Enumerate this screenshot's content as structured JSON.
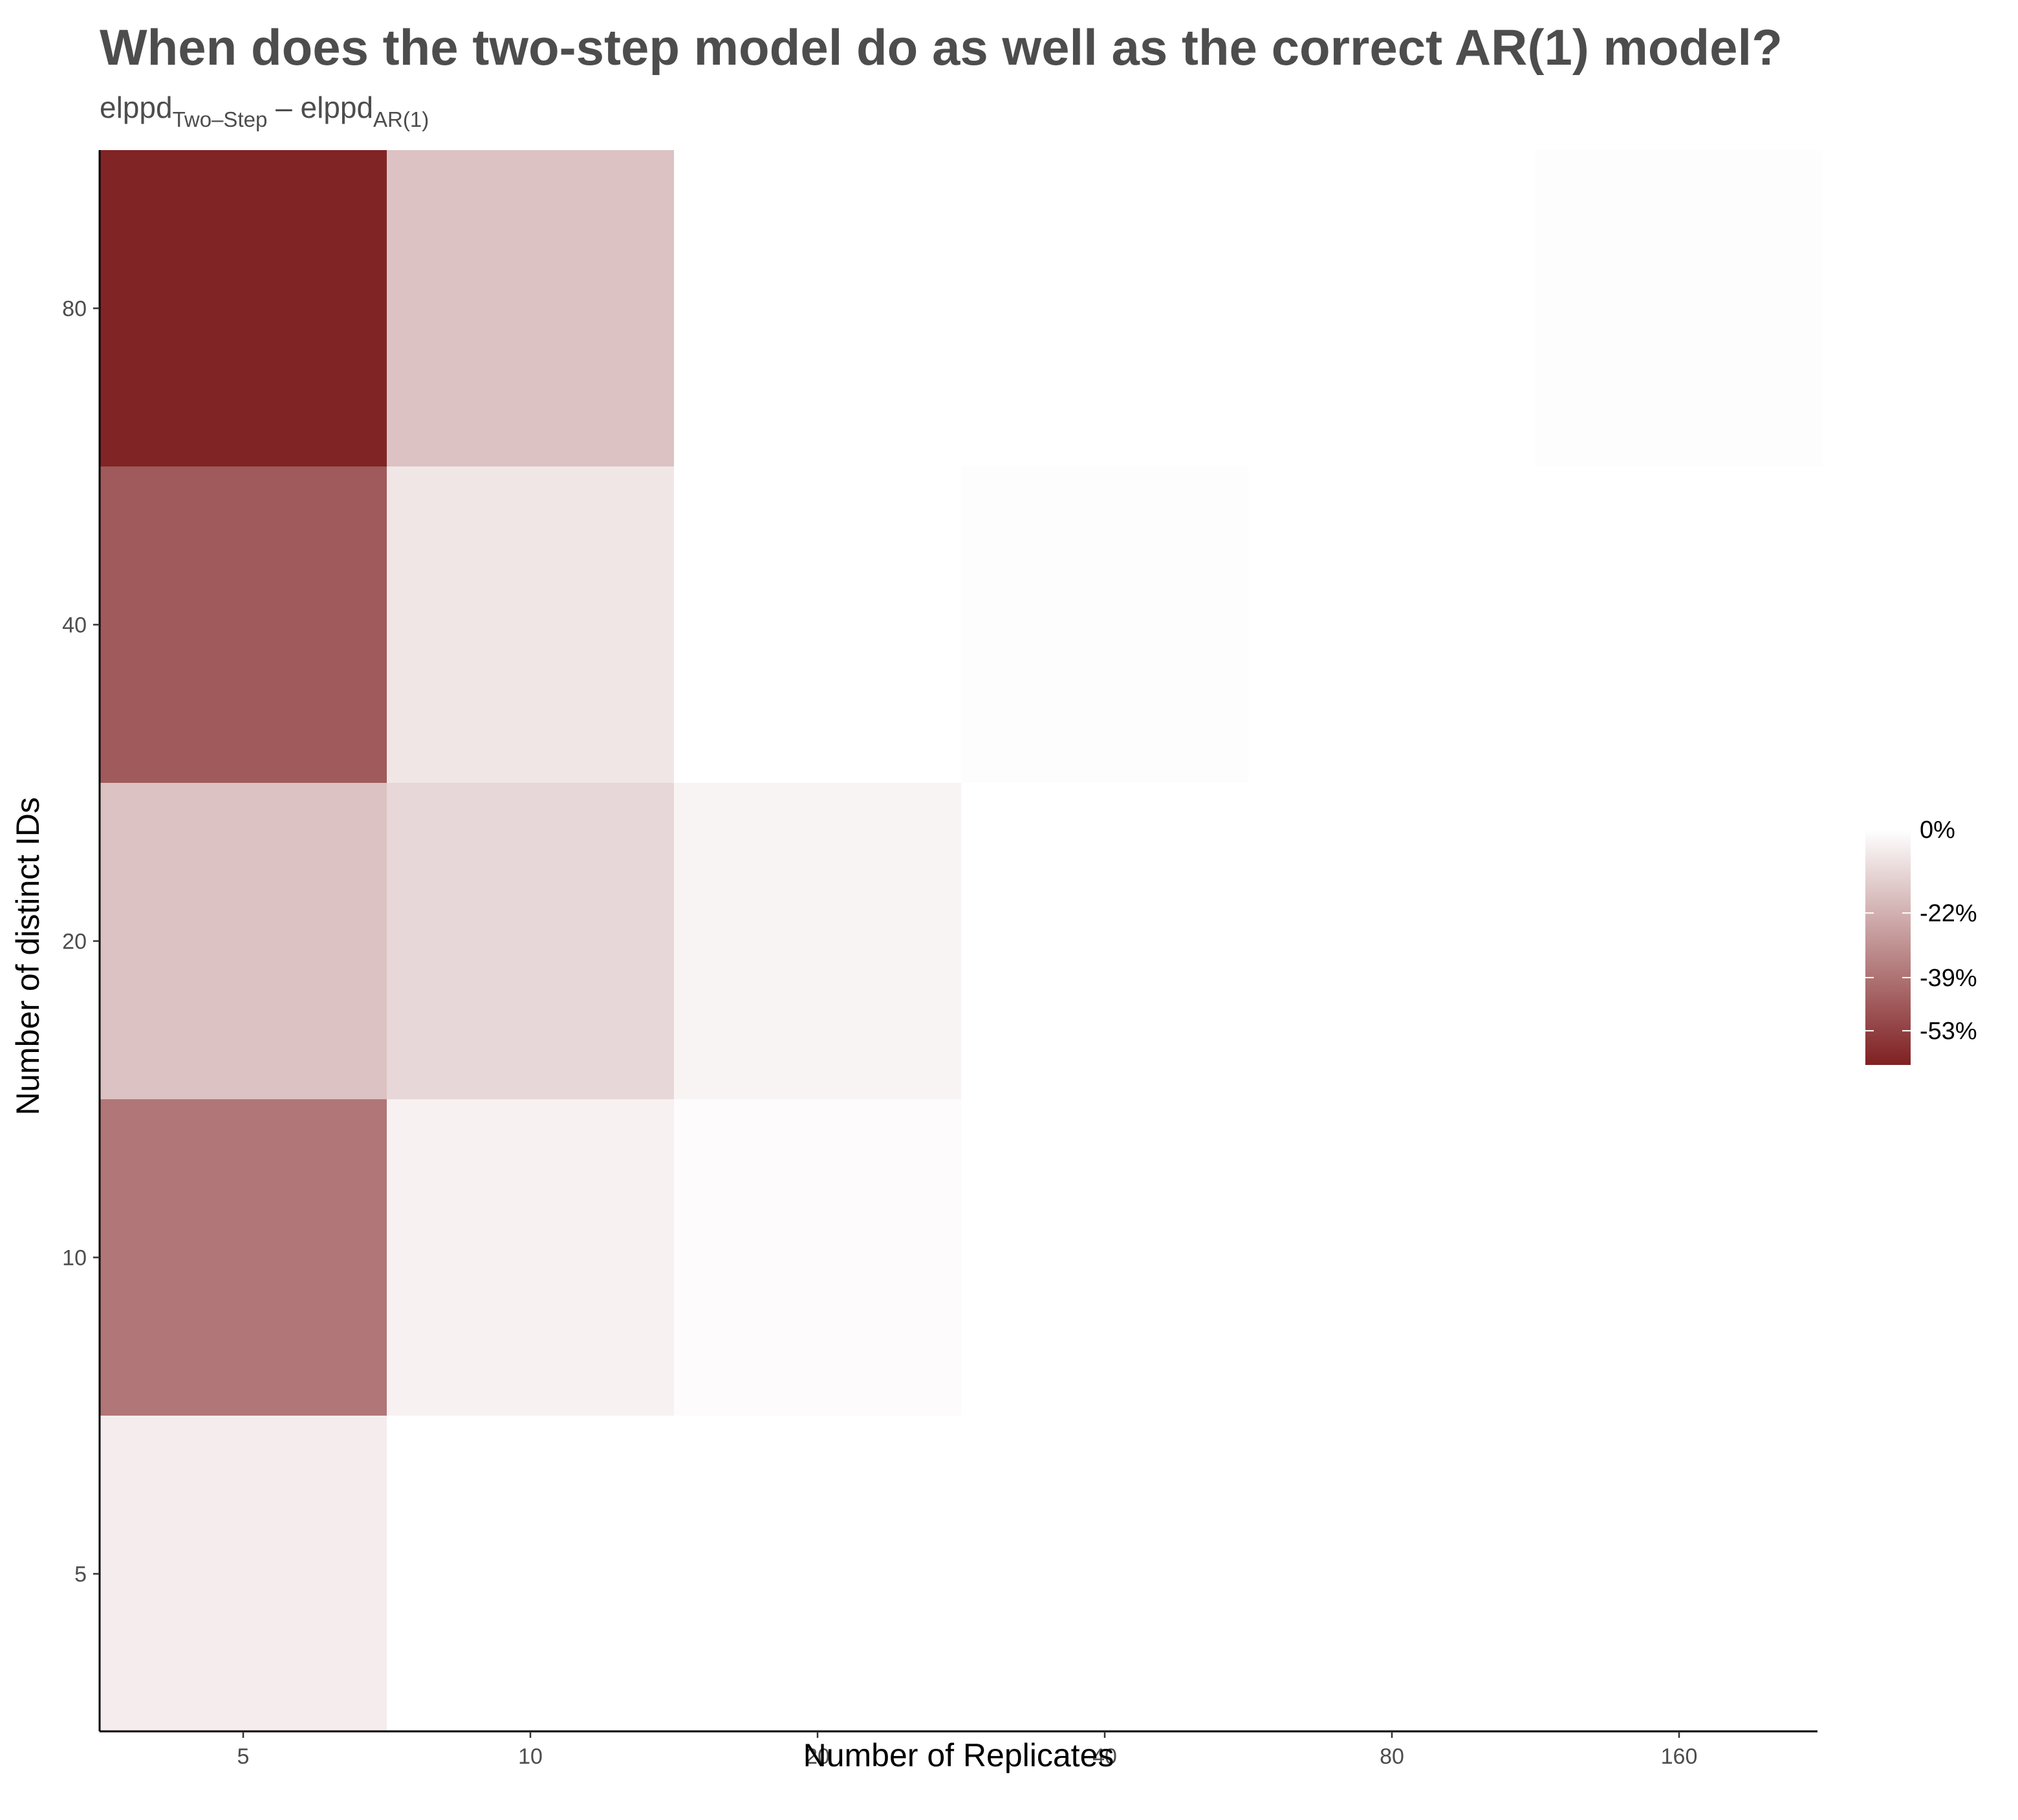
{
  "chart_data": {
    "type": "heatmap",
    "title": "When does the two-step model do as well as the correct AR(1) model?",
    "subtitle": {
      "part1": "elppd",
      "sub1": "Two–Step",
      "sep": " – ",
      "part2": "elppd",
      "sub2": "AR(1)"
    },
    "xlabel": "Number of Replicates",
    "ylabel": "Number of distinct IDs",
    "x_categories": [
      "5",
      "10",
      "20",
      "40",
      "80",
      "160"
    ],
    "y_categories": [
      "5",
      "10",
      "20",
      "40",
      "80"
    ],
    "cells": [
      {
        "x": "5",
        "y": "80",
        "value": -0.61
      },
      {
        "x": "10",
        "y": "80",
        "value": -0.17
      },
      {
        "x": "160",
        "y": "80",
        "value": -0.005
      },
      {
        "x": "5",
        "y": "40",
        "value": -0.46
      },
      {
        "x": "10",
        "y": "40",
        "value": -0.07
      },
      {
        "x": "40",
        "y": "40",
        "value": -0.005
      },
      {
        "x": "5",
        "y": "20",
        "value": -0.17
      },
      {
        "x": "10",
        "y": "20",
        "value": -0.11
      },
      {
        "x": "20",
        "y": "20",
        "value": -0.03
      },
      {
        "x": "5",
        "y": "10",
        "value": -0.38
      },
      {
        "x": "10",
        "y": "10",
        "value": -0.04
      },
      {
        "x": "20",
        "y": "10",
        "value": -0.01
      },
      {
        "x": "5",
        "y": "5",
        "value": -0.05
      },
      {
        "x": "10",
        "y": "5",
        "value": 0
      },
      {
        "x": "20",
        "y": "5",
        "value": 0
      },
      {
        "x": "40",
        "y": "5",
        "value": 0
      },
      {
        "x": "80",
        "y": "5",
        "value": 0
      },
      {
        "x": "160",
        "y": "5",
        "value": 0
      },
      {
        "x": "40",
        "y": "10",
        "value": 0
      },
      {
        "x": "80",
        "y": "10",
        "value": 0
      },
      {
        "x": "160",
        "y": "10",
        "value": 0
      },
      {
        "x": "40",
        "y": "20",
        "value": 0
      },
      {
        "x": "80",
        "y": "20",
        "value": 0
      },
      {
        "x": "160",
        "y": "20",
        "value": 0
      },
      {
        "x": "20",
        "y": "40",
        "value": 0
      },
      {
        "x": "80",
        "y": "40",
        "value": 0
      },
      {
        "x": "160",
        "y": "40",
        "value": 0
      },
      {
        "x": "20",
        "y": "80",
        "value": 0
      },
      {
        "x": "40",
        "y": "80",
        "value": 0
      },
      {
        "x": "80",
        "y": "80",
        "value": 0
      }
    ],
    "color_scale": {
      "low_color": "#7f2022",
      "high_color": "#ffffff",
      "domain": [
        -0.62,
        0
      ],
      "ticks": [
        {
          "value": 0,
          "label": "0%"
        },
        {
          "value": -0.22,
          "label": "-22%"
        },
        {
          "value": -0.39,
          "label": "-39%"
        },
        {
          "value": -0.53,
          "label": "-53%"
        }
      ]
    },
    "legend_position": "right",
    "grid": false
  }
}
